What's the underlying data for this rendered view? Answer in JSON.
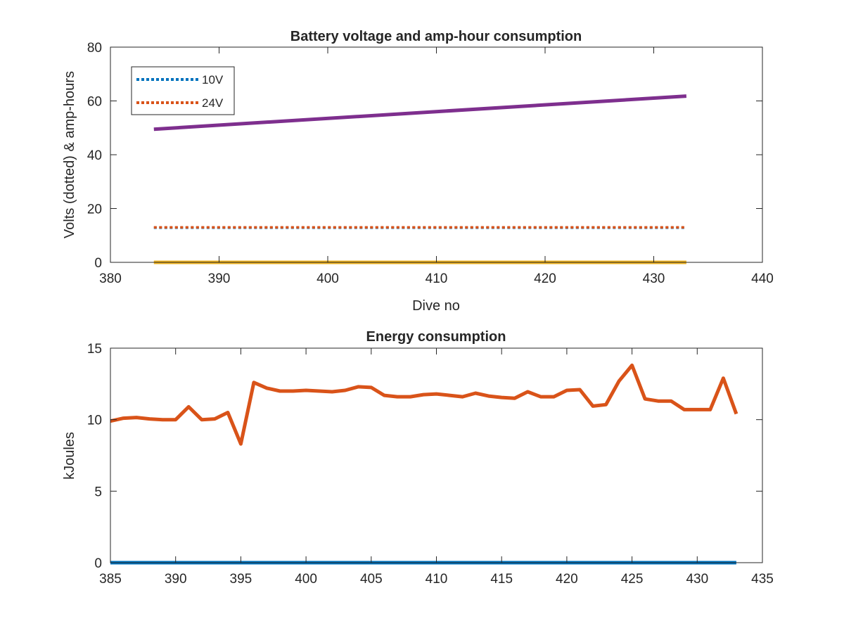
{
  "colors": {
    "blue": "#0072BD",
    "orange": "#D95319",
    "yellow": "#EDB120",
    "purple": "#7E2F8E",
    "axis": "#262626"
  },
  "chart_data": [
    {
      "type": "line",
      "title": "Battery voltage and amp-hour consumption",
      "xlabel": "Dive no",
      "ylabel": "Volts (dotted) & amp-hours",
      "xlim": [
        380,
        440
      ],
      "ylim": [
        0,
        80
      ],
      "xticks": [
        "380",
        "390",
        "400",
        "410",
        "420",
        "430",
        "440"
      ],
      "yticks": [
        "0",
        "20",
        "40",
        "60",
        "80"
      ],
      "legend_position": "top-left",
      "legend": [
        "10V",
        "24V"
      ],
      "grid": false,
      "series": [
        {
          "name": "10V",
          "style": "dotted",
          "color": "#0072BD",
          "x": [
            384,
            433
          ],
          "y": [
            12.9,
            12.9
          ]
        },
        {
          "name": "24V",
          "style": "dotted",
          "color": "#D95319",
          "x": [
            384,
            433
          ],
          "y": [
            13.0,
            13.0
          ]
        },
        {
          "style": "solid",
          "color": "#EDB120",
          "x": [
            384,
            433
          ],
          "y": [
            0,
            0
          ]
        },
        {
          "style": "solid",
          "color": "#7E2F8E",
          "x": [
            384,
            433
          ],
          "y": [
            49.5,
            61.8
          ]
        }
      ]
    },
    {
      "type": "line",
      "title": "Energy consumption",
      "xlabel": "",
      "ylabel": "kJoules",
      "xlim": [
        385,
        435
      ],
      "ylim": [
        0,
        15
      ],
      "xticks": [
        "385",
        "390",
        "395",
        "400",
        "405",
        "410",
        "415",
        "420",
        "425",
        "430",
        "435"
      ],
      "yticks": [
        "0",
        "5",
        "10",
        "15"
      ],
      "grid": false,
      "series": [
        {
          "style": "solid",
          "color": "#0072BD",
          "x": [
            385,
            433
          ],
          "y": [
            0,
            0
          ]
        },
        {
          "style": "solid",
          "color": "#D95319",
          "x": [
            385,
            386,
            387,
            388,
            389,
            390,
            391,
            392,
            393,
            394,
            395,
            396,
            397,
            398,
            399,
            400,
            401,
            402,
            403,
            404,
            405,
            406,
            407,
            408,
            409,
            410,
            411,
            412,
            413,
            414,
            415,
            416,
            417,
            418,
            419,
            420,
            421,
            422,
            423,
            424,
            425,
            426,
            427,
            428,
            429,
            430,
            431,
            432,
            433
          ],
          "y": [
            9.9,
            10.1,
            10.15,
            10.05,
            10.0,
            10.0,
            10.9,
            10.0,
            10.05,
            10.5,
            8.3,
            12.6,
            12.2,
            12.0,
            12.0,
            12.05,
            12.0,
            11.95,
            12.05,
            12.3,
            12.25,
            11.7,
            11.6,
            11.6,
            11.75,
            11.8,
            11.7,
            11.6,
            11.85,
            11.65,
            11.55,
            11.5,
            11.95,
            11.6,
            11.6,
            12.05,
            12.1,
            10.95,
            11.05,
            12.7,
            13.8,
            11.45,
            11.3,
            11.3,
            10.7,
            10.7,
            10.7,
            12.9,
            10.4
          ]
        }
      ]
    }
  ]
}
